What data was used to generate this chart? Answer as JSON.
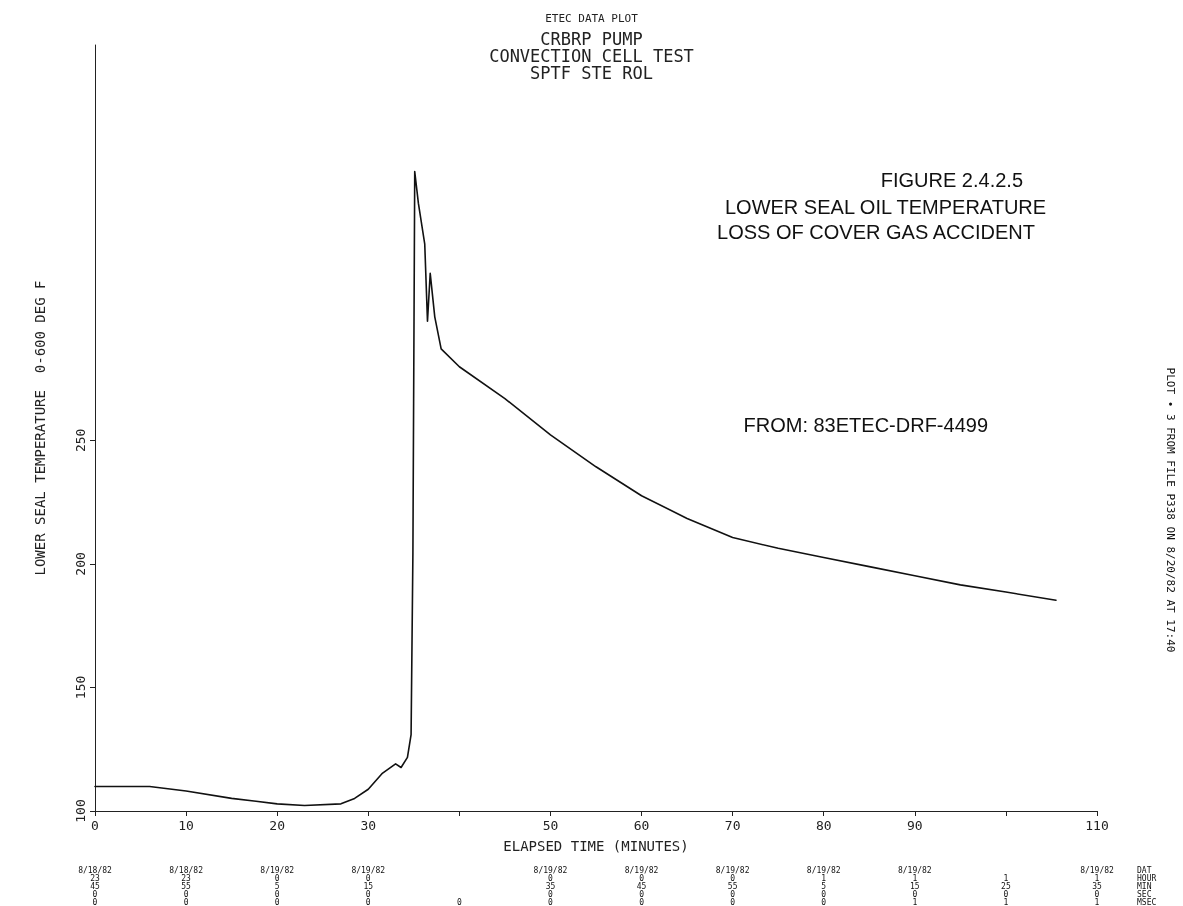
{
  "chart_data": {
    "type": "line",
    "title": "ETEC DATA PLOT",
    "subtitle": "CRBRP PUMP\nCONVECTION CELL TEST\nSPTF STE ROL",
    "xlabel": "ELAPSED TIME (MINUTES)",
    "ylabel": "LOWER SEAL TEMPERATURE  0-600 DEG F",
    "annotations": [
      "FIGURE 2.4.2.5",
      "LOWER SEAL OIL TEMPERATURE",
      "LOSS OF COVER GAS ACCIDENT",
      "FROM: 83ETEC-DRF-4499",
      "PLOT • 3 FROM FILE P338 ON 8/20/82 AT 17:40",
      "8/18/82\n23\n45\n0\n0",
      "8/18/82\n23\n55\n0\n0",
      "8/19/82\n0\n5\n0\n0",
      "8/19/82\n0\n15\n0\n0",
      "\n\n\n\n0",
      "8/19/82\n0\n35\n0\n0",
      "8/19/82\n0\n45\n0\n0",
      "8/19/82\n0\n55\n0\n0",
      "8/19/82\n1\n5\n0\n0",
      "8/19/82\n1\n15\n0\n1",
      "\n1\n25\n0\n1",
      "8/19/82\n1\n35\n0\n1",
      "DAT\nHOUR\nMIN\nSEC\nMSEC"
    ],
    "x": [
      0,
      6,
      10,
      15,
      20,
      23,
      27,
      28.5,
      30,
      31.5,
      33,
      33.6,
      34.3,
      34.7,
      34.9,
      35.1,
      35.5,
      36.2,
      36.5,
      36.8,
      37.3,
      38,
      40,
      45,
      50,
      55,
      60,
      65,
      70,
      75,
      80,
      85,
      90,
      95,
      100,
      105.5
    ],
    "series": [
      {
        "color": "#111111",
        "values": [
          109.9,
          109.9,
          108.1,
          105.1,
          102.9,
          102.2,
          102.9,
          105.1,
          108.8,
          115.1,
          119.1,
          117.6,
          121.7,
          130.9,
          204.4,
          358.8,
          346,
          329.4,
          298.2,
          317.6,
          300,
          287,
          279.8,
          266.9,
          252.2,
          239.3,
          227.6,
          218.4,
          210.7,
          206.3,
          202.6,
          198.9,
          195.2,
          191.5,
          188.6,
          185.3
        ]
      }
    ],
    "xlim": [
      0,
      110
    ],
    "xticks": [
      0,
      10,
      20,
      30,
      {
        "value": 40,
        "label": null
      },
      50,
      60,
      70,
      80,
      90,
      {
        "value": 100,
        "label": null
      },
      110
    ],
    "ylim": [
      100,
      410
    ],
    "yticks": [
      100,
      150,
      200,
      250
    ],
    "grid": false,
    "marker": "none",
    "line_style": "solid"
  }
}
